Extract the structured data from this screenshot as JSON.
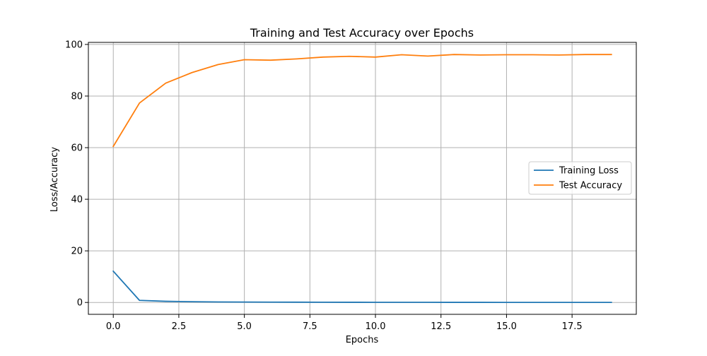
{
  "chart_data": {
    "type": "line",
    "title": "Training and Test Accuracy over Epochs",
    "xlabel": "Epochs",
    "ylabel": "Loss/Accuracy",
    "xlim": [
      -0.95,
      19.95
    ],
    "ylim": [
      -4.6,
      100.8
    ],
    "xticks": [
      0.0,
      2.5,
      5.0,
      7.5,
      10.0,
      12.5,
      15.0,
      17.5
    ],
    "xtick_labels": [
      "0.0",
      "2.5",
      "5.0",
      "7.5",
      "10.0",
      "12.5",
      "15.0",
      "17.5"
    ],
    "yticks": [
      0,
      20,
      40,
      60,
      80,
      100
    ],
    "ytick_labels": [
      "0",
      "20",
      "40",
      "60",
      "80",
      "100"
    ],
    "grid": true,
    "legend_position": "center-right",
    "x": [
      0,
      1,
      2,
      3,
      4,
      5,
      6,
      7,
      8,
      9,
      10,
      11,
      12,
      13,
      14,
      15,
      16,
      17,
      18,
      19
    ],
    "series": [
      {
        "name": "Training Loss",
        "color": "#1f77b4",
        "values": [
          12.1,
          0.8,
          0.45,
          0.3,
          0.2,
          0.15,
          0.12,
          0.1,
          0.08,
          0.07,
          0.06,
          0.05,
          0.05,
          0.04,
          0.04,
          0.03,
          0.03,
          0.03,
          0.03,
          0.02
        ]
      },
      {
        "name": "Test Accuracy",
        "color": "#ff7f0e",
        "values": [
          60.5,
          77.3,
          85.0,
          89.1,
          92.2,
          94.1,
          93.9,
          94.4,
          95.1,
          95.4,
          95.1,
          96.0,
          95.5,
          96.1,
          95.9,
          96.0,
          96.0,
          95.9,
          96.1,
          96.1
        ]
      }
    ]
  }
}
